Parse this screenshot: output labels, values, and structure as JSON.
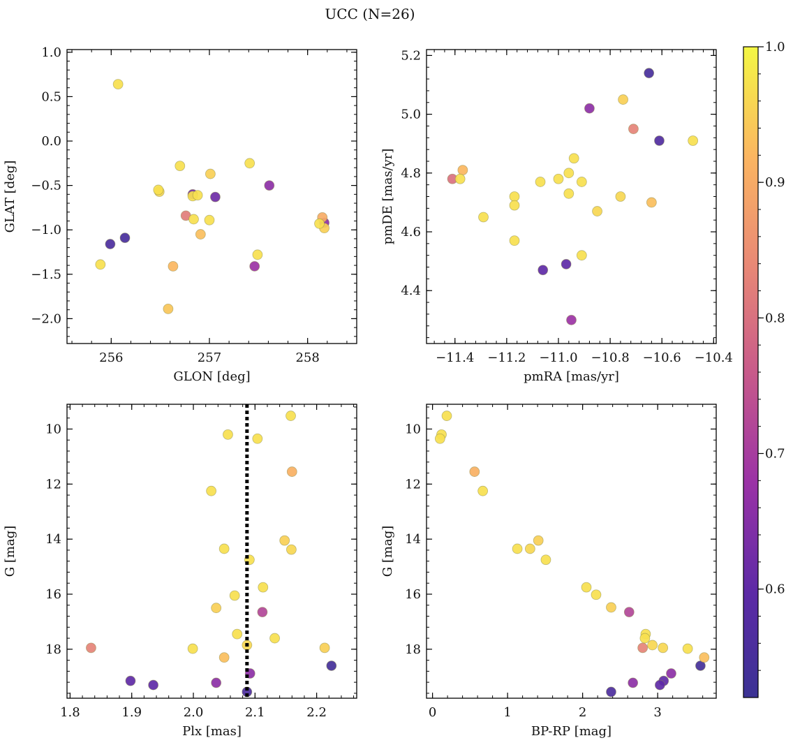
{
  "title": "UCC (N=26)",
  "colormap": {
    "name": "plasma",
    "vmin": 0.52,
    "vmax": 1.0,
    "ticks": [
      0.6,
      0.7,
      0.8,
      0.9,
      1.0
    ],
    "tick_labels": [
      "0.6",
      "0.7",
      "0.8",
      "0.9",
      "1.0"
    ]
  },
  "chart_data": [
    {
      "type": "scatter",
      "xlabel": "GLON [deg]",
      "ylabel": "GLAT [deg]",
      "xlim": [
        255.55,
        258.5
      ],
      "ylim": [
        -2.28,
        1.03
      ],
      "xticks": [
        256,
        257,
        258
      ],
      "xtick_labels": [
        "256",
        "257",
        "258"
      ],
      "yticks": [
        1.0,
        0.5,
        0.0,
        -0.5,
        -1.0,
        -1.5,
        -2.0
      ],
      "ytick_labels": [
        "1.0",
        "0.5",
        "0.0",
        "−0.5",
        "−1.0",
        "−1.5",
        "−2.0"
      ],
      "points": [
        {
          "x": 256.07,
          "y": 0.64,
          "c": 0.97
        },
        {
          "x": 256.7,
          "y": -0.28,
          "c": 0.97
        },
        {
          "x": 257.01,
          "y": -0.37,
          "c": 0.95
        },
        {
          "x": 257.41,
          "y": -0.25,
          "c": 0.97
        },
        {
          "x": 257.61,
          "y": -0.5,
          "c": 0.66
        },
        {
          "x": 256.48,
          "y": -0.55,
          "c": 0.97
        },
        {
          "x": 256.49,
          "y": -0.57,
          "c": 0.96
        },
        {
          "x": 256.83,
          "y": -0.6,
          "c": 0.63
        },
        {
          "x": 256.83,
          "y": -0.62,
          "c": 0.97
        },
        {
          "x": 256.88,
          "y": -0.61,
          "c": 0.97
        },
        {
          "x": 257.06,
          "y": -0.63,
          "c": 0.62
        },
        {
          "x": 256.76,
          "y": -0.84,
          "c": 0.82
        },
        {
          "x": 256.84,
          "y": -0.88,
          "c": 0.97
        },
        {
          "x": 257.0,
          "y": -0.89,
          "c": 0.97
        },
        {
          "x": 256.91,
          "y": -1.05,
          "c": 0.93
        },
        {
          "x": 258.15,
          "y": -0.86,
          "c": 0.9
        },
        {
          "x": 258.17,
          "y": -0.92,
          "c": 0.66
        },
        {
          "x": 258.12,
          "y": -0.93,
          "c": 0.97
        },
        {
          "x": 258.17,
          "y": -0.98,
          "c": 0.95
        },
        {
          "x": 256.14,
          "y": -1.09,
          "c": 0.55
        },
        {
          "x": 255.99,
          "y": -1.16,
          "c": 0.56
        },
        {
          "x": 255.89,
          "y": -1.39,
          "c": 0.97
        },
        {
          "x": 256.63,
          "y": -1.41,
          "c": 0.92
        },
        {
          "x": 257.49,
          "y": -1.28,
          "c": 0.97
        },
        {
          "x": 257.46,
          "y": -1.41,
          "c": 0.68
        },
        {
          "x": 256.58,
          "y": -1.89,
          "c": 0.94
        }
      ]
    },
    {
      "type": "scatter",
      "xlabel": "pmRA [mas/yr]",
      "ylabel": "pmDE [mas/yr]",
      "xlim": [
        -11.51,
        -10.39
      ],
      "ylim": [
        4.22,
        5.22
      ],
      "xticks": [
        -11.4,
        -11.2,
        -11.0,
        -10.8,
        -10.6,
        -10.4
      ],
      "xtick_labels": [
        "−11.4",
        "−11.2",
        "−11.0",
        "−10.8",
        "−10.6",
        "−10.4"
      ],
      "yticks": [
        5.2,
        5.0,
        4.8,
        4.6,
        4.4
      ],
      "ytick_labels": [
        "5.2",
        "5.0",
        "4.8",
        "4.6",
        "4.4"
      ],
      "points": [
        {
          "x": -10.65,
          "y": 5.14,
          "c": 0.55
        },
        {
          "x": -10.75,
          "y": 5.05,
          "c": 0.95
        },
        {
          "x": -10.88,
          "y": 5.02,
          "c": 0.66
        },
        {
          "x": -10.71,
          "y": 4.95,
          "c": 0.83
        },
        {
          "x": -10.61,
          "y": 4.91,
          "c": 0.57
        },
        {
          "x": -10.48,
          "y": 4.91,
          "c": 0.97
        },
        {
          "x": -10.94,
          "y": 4.85,
          "c": 0.97
        },
        {
          "x": -11.37,
          "y": 4.81,
          "c": 0.92
        },
        {
          "x": -10.96,
          "y": 4.8,
          "c": 0.97
        },
        {
          "x": -11.41,
          "y": 4.78,
          "c": 0.8
        },
        {
          "x": -11.38,
          "y": 4.78,
          "c": 0.97
        },
        {
          "x": -11.0,
          "y": 4.78,
          "c": 0.97
        },
        {
          "x": -11.07,
          "y": 4.77,
          "c": 0.97
        },
        {
          "x": -10.91,
          "y": 4.77,
          "c": 0.97
        },
        {
          "x": -10.96,
          "y": 4.73,
          "c": 0.97
        },
        {
          "x": -11.17,
          "y": 4.72,
          "c": 0.97
        },
        {
          "x": -10.76,
          "y": 4.72,
          "c": 0.96
        },
        {
          "x": -10.64,
          "y": 4.7,
          "c": 0.93
        },
        {
          "x": -11.17,
          "y": 4.69,
          "c": 0.97
        },
        {
          "x": -10.85,
          "y": 4.67,
          "c": 0.96
        },
        {
          "x": -11.29,
          "y": 4.65,
          "c": 0.97
        },
        {
          "x": -11.17,
          "y": 4.57,
          "c": 0.97
        },
        {
          "x": -10.91,
          "y": 4.52,
          "c": 0.97
        },
        {
          "x": -10.97,
          "y": 4.49,
          "c": 0.6
        },
        {
          "x": -11.06,
          "y": 4.47,
          "c": 0.6
        },
        {
          "x": -10.95,
          "y": 4.3,
          "c": 0.68
        }
      ]
    },
    {
      "type": "scatter",
      "xlabel": "Plx [mas]",
      "ylabel": "G [mag]",
      "xlim": [
        1.795,
        2.265
      ],
      "ylim": [
        19.78,
        9.1
      ],
      "xticks": [
        1.8,
        1.9,
        2.0,
        2.1,
        2.2
      ],
      "xtick_labels": [
        "1.8",
        "1.9",
        "2.0",
        "2.1",
        "2.2"
      ],
      "yticks": [
        10,
        12,
        14,
        16,
        18
      ],
      "ytick_labels": [
        "10",
        "12",
        "14",
        "16",
        "18"
      ],
      "vline": {
        "x": 2.087,
        "style": "dotted"
      },
      "points": [
        {
          "x": 2.158,
          "y": 9.52,
          "c": 0.97
        },
        {
          "x": 2.056,
          "y": 10.2,
          "c": 0.97
        },
        {
          "x": 2.104,
          "y": 10.35,
          "c": 0.97
        },
        {
          "x": 2.16,
          "y": 11.55,
          "c": 0.91
        },
        {
          "x": 2.029,
          "y": 12.25,
          "c": 0.97
        },
        {
          "x": 2.148,
          "y": 14.05,
          "c": 0.95
        },
        {
          "x": 2.05,
          "y": 14.35,
          "c": 0.97
        },
        {
          "x": 2.159,
          "y": 14.38,
          "c": 0.96
        },
        {
          "x": 2.091,
          "y": 14.75,
          "c": 0.97
        },
        {
          "x": 2.113,
          "y": 15.75,
          "c": 0.97
        },
        {
          "x": 2.067,
          "y": 16.05,
          "c": 0.97
        },
        {
          "x": 2.112,
          "y": 16.65,
          "c": 0.72
        },
        {
          "x": 2.037,
          "y": 16.5,
          "c": 0.95
        },
        {
          "x": 2.071,
          "y": 17.45,
          "c": 0.97
        },
        {
          "x": 2.132,
          "y": 17.6,
          "c": 0.97
        },
        {
          "x": 2.087,
          "y": 17.85,
          "c": 0.96
        },
        {
          "x": 1.834,
          "y": 17.95,
          "c": 0.83
        },
        {
          "x": 1.999,
          "y": 17.98,
          "c": 0.97
        },
        {
          "x": 2.213,
          "y": 17.95,
          "c": 0.95
        },
        {
          "x": 2.05,
          "y": 18.3,
          "c": 0.93
        },
        {
          "x": 2.224,
          "y": 18.6,
          "c": 0.54
        },
        {
          "x": 2.092,
          "y": 18.88,
          "c": 0.66
        },
        {
          "x": 1.898,
          "y": 19.15,
          "c": 0.6
        },
        {
          "x": 2.037,
          "y": 19.22,
          "c": 0.66
        },
        {
          "x": 1.935,
          "y": 19.3,
          "c": 0.6
        },
        {
          "x": 2.087,
          "y": 19.55,
          "c": 0.56
        }
      ]
    },
    {
      "type": "scatter",
      "xlabel": "BP-RP [mag]",
      "ylabel": "G [mag]",
      "xlim": [
        -0.08,
        3.78
      ],
      "ylim": [
        19.78,
        9.1
      ],
      "xticks": [
        0,
        1,
        2,
        3
      ],
      "xtick_labels": [
        "0",
        "1",
        "2",
        "3"
      ],
      "yticks": [
        10,
        12,
        14,
        16,
        18
      ],
      "ytick_labels": [
        "10",
        "12",
        "14",
        "16",
        "18"
      ],
      "points": [
        {
          "x": 0.19,
          "y": 9.52,
          "c": 0.97
        },
        {
          "x": 0.12,
          "y": 10.2,
          "c": 0.97
        },
        {
          "x": 0.1,
          "y": 10.35,
          "c": 0.97
        },
        {
          "x": 0.56,
          "y": 11.55,
          "c": 0.91
        },
        {
          "x": 0.67,
          "y": 12.25,
          "c": 0.97
        },
        {
          "x": 1.41,
          "y": 14.05,
          "c": 0.95
        },
        {
          "x": 1.13,
          "y": 14.35,
          "c": 0.97
        },
        {
          "x": 1.3,
          "y": 14.35,
          "c": 0.96
        },
        {
          "x": 1.51,
          "y": 14.75,
          "c": 0.97
        },
        {
          "x": 2.05,
          "y": 15.75,
          "c": 0.97
        },
        {
          "x": 2.18,
          "y": 16.02,
          "c": 0.97
        },
        {
          "x": 2.38,
          "y": 16.48,
          "c": 0.95
        },
        {
          "x": 2.62,
          "y": 16.65,
          "c": 0.72
        },
        {
          "x": 2.84,
          "y": 17.45,
          "c": 0.97
        },
        {
          "x": 2.83,
          "y": 17.6,
          "c": 0.97
        },
        {
          "x": 2.93,
          "y": 17.85,
          "c": 0.96
        },
        {
          "x": 2.8,
          "y": 17.95,
          "c": 0.83
        },
        {
          "x": 3.07,
          "y": 17.95,
          "c": 0.96
        },
        {
          "x": 3.4,
          "y": 17.98,
          "c": 0.97
        },
        {
          "x": 3.62,
          "y": 18.3,
          "c": 0.93
        },
        {
          "x": 3.57,
          "y": 18.6,
          "c": 0.54
        },
        {
          "x": 3.18,
          "y": 18.88,
          "c": 0.66
        },
        {
          "x": 3.08,
          "y": 19.15,
          "c": 0.6
        },
        {
          "x": 2.67,
          "y": 19.22,
          "c": 0.66
        },
        {
          "x": 3.03,
          "y": 19.3,
          "c": 0.6
        },
        {
          "x": 2.38,
          "y": 19.55,
          "c": 0.56
        }
      ]
    }
  ]
}
